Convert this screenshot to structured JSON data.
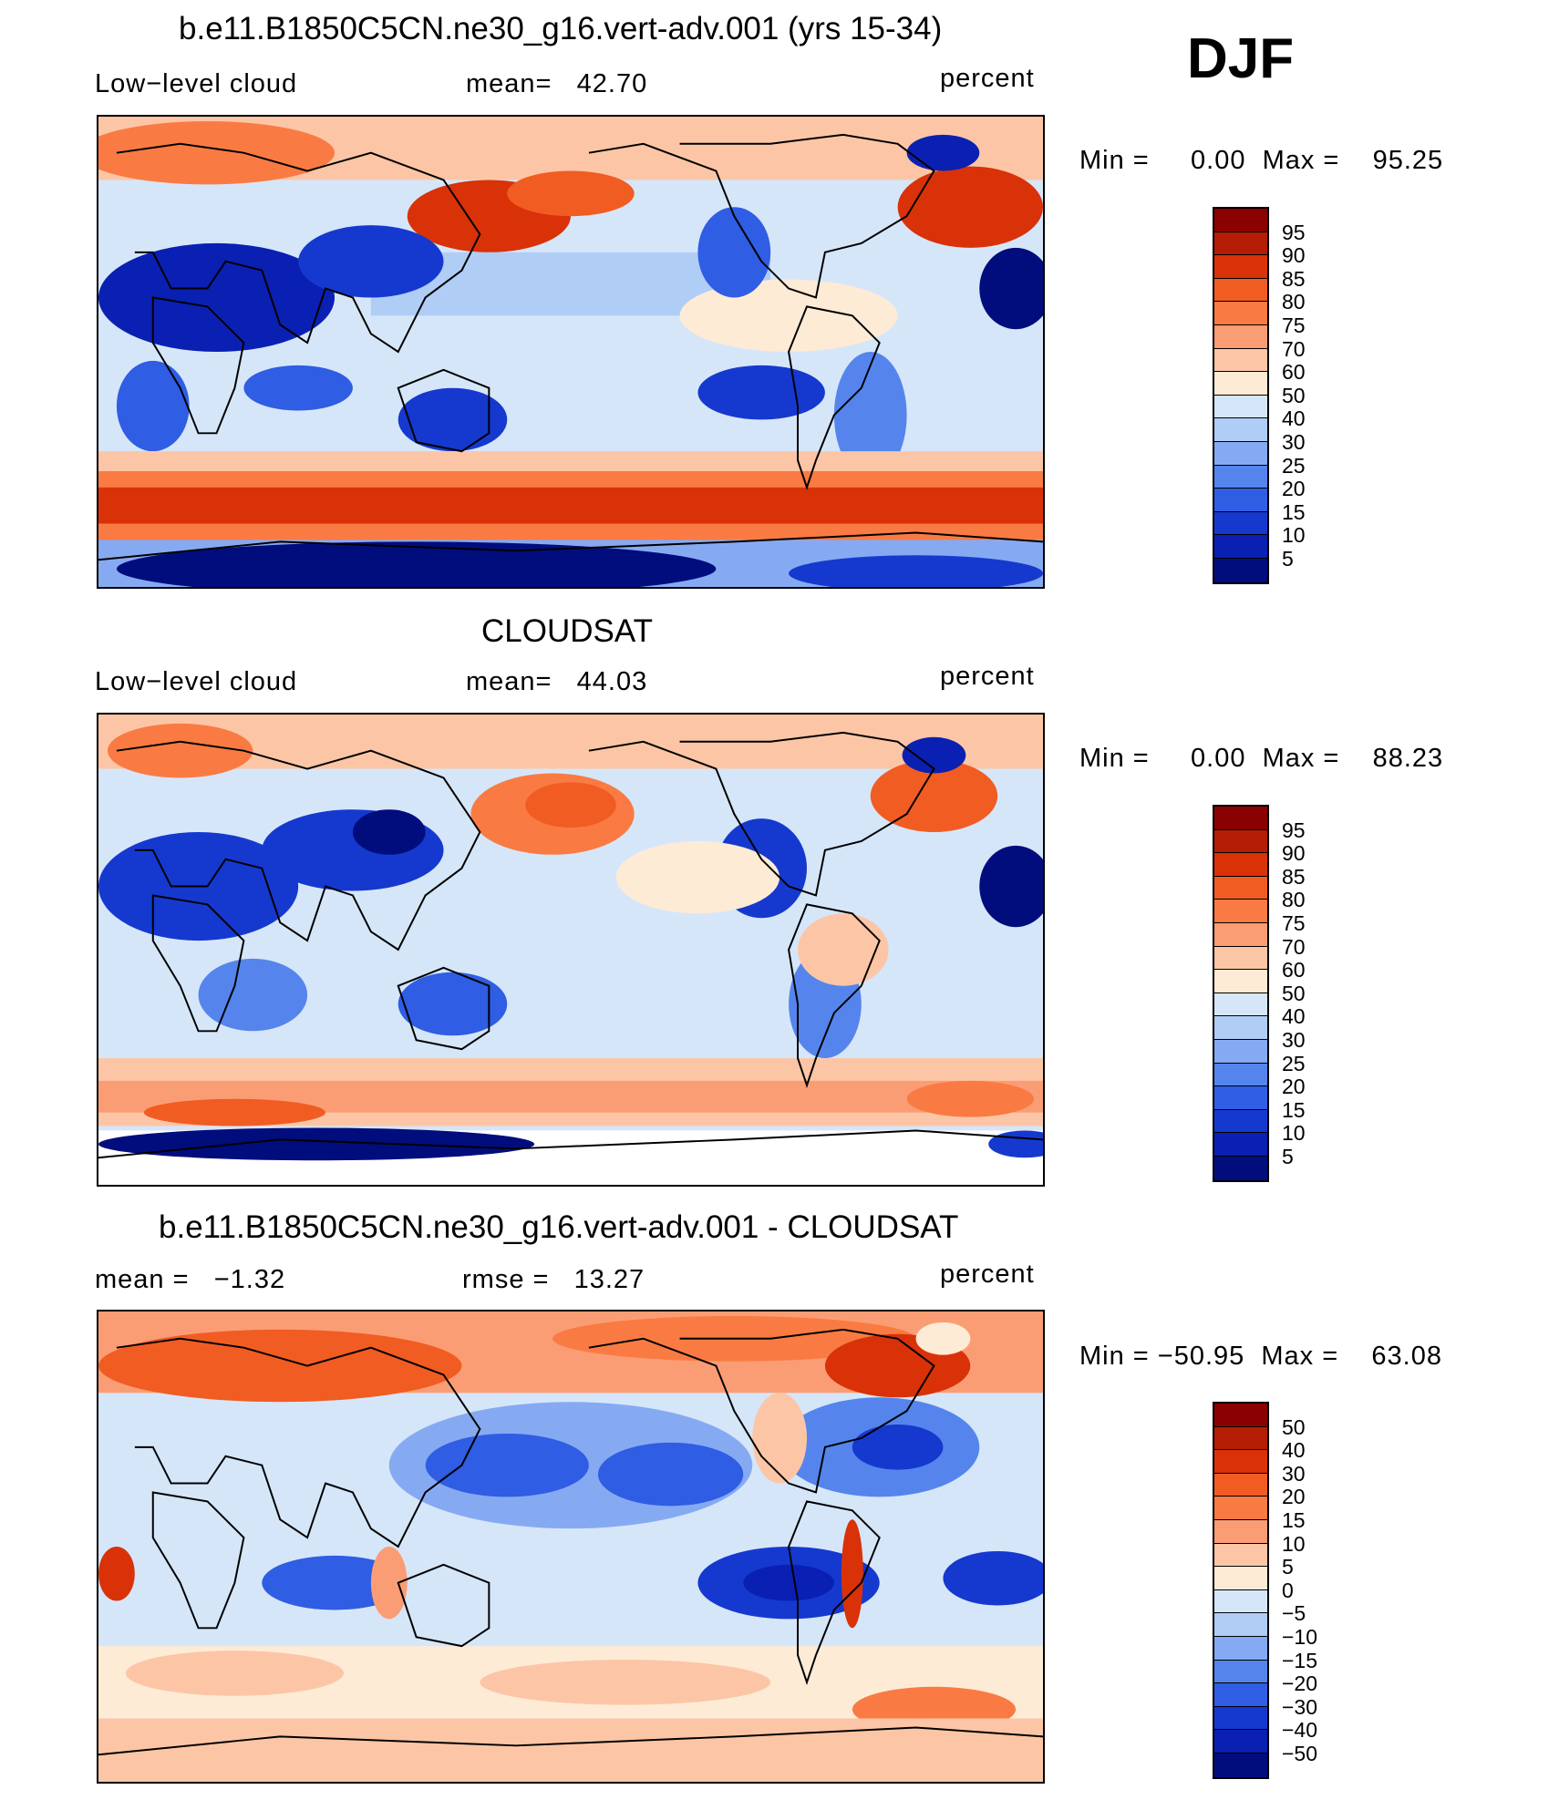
{
  "season": "DJF",
  "panels": [
    {
      "title": "b.e11.B1850C5CN.ne30_g16.vert-adv.001 (yrs 15-34)",
      "left_label": "Low−level cloud",
      "center_label": "mean=   42.70",
      "right_label": "percent",
      "minmax": "Min =     0.00  Max =    95.25",
      "colorbar": {
        "colors": [
          "#8b0000",
          "#b51d04",
          "#d93208",
          "#f15c23",
          "#f97b43",
          "#fb9d74",
          "#fcc6a6",
          "#fdebd6",
          "#d6e6f9",
          "#b0cdf6",
          "#86aaf2",
          "#5585ec",
          "#2f5de3",
          "#1539cf",
          "#0a20b3",
          "#020d7d"
        ],
        "labels": [
          "95",
          "90",
          "85",
          "80",
          "75",
          "70",
          "60",
          "50",
          "40",
          "30",
          "25",
          "20",
          "15",
          "10",
          "5"
        ]
      }
    },
    {
      "title": "CLOUDSAT",
      "left_label": "Low−level cloud",
      "center_label": "mean=   44.03",
      "right_label": "percent",
      "minmax": "Min =     0.00  Max =    88.23",
      "colorbar": {
        "colors": [
          "#8b0000",
          "#b51d04",
          "#d93208",
          "#f15c23",
          "#f97b43",
          "#fb9d74",
          "#fcc6a6",
          "#fdebd6",
          "#d6e6f9",
          "#b0cdf6",
          "#86aaf2",
          "#5585ec",
          "#2f5de3",
          "#1539cf",
          "#0a20b3",
          "#020d7d"
        ],
        "labels": [
          "95",
          "90",
          "85",
          "80",
          "75",
          "70",
          "60",
          "50",
          "40",
          "30",
          "25",
          "20",
          "15",
          "10",
          "5"
        ]
      }
    },
    {
      "title": "b.e11.B1850C5CN.ne30_g16.vert-adv.001 - CLOUDSAT",
      "left_label": "mean =   −1.32",
      "center_label": "rmse =   13.27",
      "right_label": "percent",
      "minmax": "Min = −50.95  Max =    63.08",
      "colorbar": {
        "colors": [
          "#8b0000",
          "#b51d04",
          "#d93208",
          "#f15c23",
          "#f97b43",
          "#fb9d74",
          "#fcc6a6",
          "#fdebd6",
          "#d6e6f9",
          "#b0cdf6",
          "#86aaf2",
          "#5585ec",
          "#2f5de3",
          "#1539cf",
          "#0a20b3",
          "#020d7d"
        ],
        "labels": [
          "50",
          "40",
          "30",
          "20",
          "15",
          "10",
          "5",
          "0",
          "−5",
          "−10",
          "−15",
          "−20",
          "−30",
          "−40",
          "−50"
        ]
      }
    }
  ]
}
